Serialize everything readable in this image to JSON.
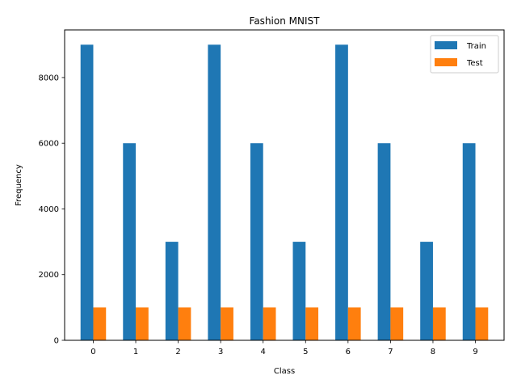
{
  "chart_data": {
    "type": "bar",
    "title": "Fashion MNIST",
    "xlabel": "Class",
    "ylabel": "Frequency",
    "categories": [
      "0",
      "1",
      "2",
      "3",
      "4",
      "5",
      "6",
      "7",
      "8",
      "9"
    ],
    "series": [
      {
        "name": "Train",
        "color": "#1f77b4",
        "values": [
          9000,
          6000,
          3000,
          9000,
          6000,
          3000,
          9000,
          6000,
          3000,
          6000
        ]
      },
      {
        "name": "Test",
        "color": "#ff7f0e",
        "values": [
          1000,
          1000,
          1000,
          1000,
          1000,
          1000,
          1000,
          1000,
          1000,
          1000
        ]
      }
    ],
    "ylim": [
      0,
      9450
    ],
    "yticks": [
      0,
      2000,
      4000,
      6000,
      8000
    ],
    "grid": false,
    "legend_position": "top-right"
  }
}
